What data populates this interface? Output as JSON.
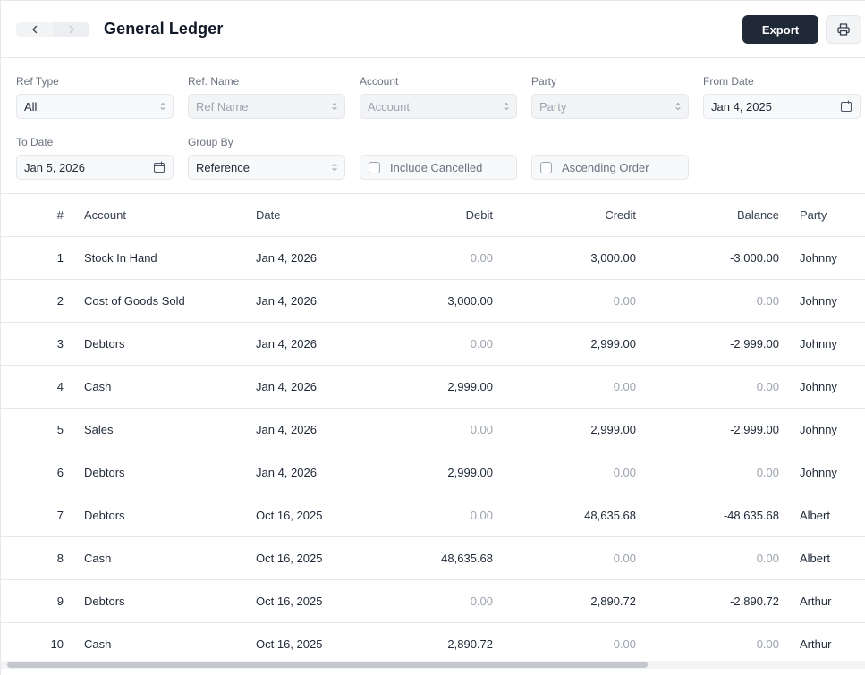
{
  "header": {
    "title": "General Ledger",
    "export_label": "Export",
    "back_icon": "chevron-left-icon",
    "forward_icon": "chevron-right-icon",
    "print_icon": "printer-icon"
  },
  "filters": {
    "ref_type": {
      "label": "Ref Type",
      "value": "All"
    },
    "ref_name": {
      "label": "Ref. Name",
      "placeholder": "Ref Name"
    },
    "account": {
      "label": "Account",
      "placeholder": "Account"
    },
    "party": {
      "label": "Party",
      "placeholder": "Party"
    },
    "from_date": {
      "label": "From Date",
      "value": "Jan 4, 2025"
    },
    "to_date": {
      "label": "To Date",
      "value": "Jan 5, 2026"
    },
    "group_by": {
      "label": "Group By",
      "value": "Reference"
    },
    "include_cancelled": {
      "label": "Include Cancelled",
      "checked": false
    },
    "ascending_order": {
      "label": "Ascending Order",
      "checked": false
    }
  },
  "table": {
    "columns": {
      "num": "#",
      "account": "Account",
      "date": "Date",
      "debit": "Debit",
      "credit": "Credit",
      "balance": "Balance",
      "party": "Party"
    },
    "rows": [
      {
        "num": "1",
        "account": "Stock In Hand",
        "date": "Jan 4, 2026",
        "debit": "0.00",
        "credit": "3,000.00",
        "balance": "-3,000.00",
        "party": "Johnny"
      },
      {
        "num": "2",
        "account": "Cost of Goods Sold",
        "date": "Jan 4, 2026",
        "debit": "3,000.00",
        "credit": "0.00",
        "balance": "0.00",
        "party": "Johnny"
      },
      {
        "num": "3",
        "account": "Debtors",
        "date": "Jan 4, 2026",
        "debit": "0.00",
        "credit": "2,999.00",
        "balance": "-2,999.00",
        "party": "Johnny"
      },
      {
        "num": "4",
        "account": "Cash",
        "date": "Jan 4, 2026",
        "debit": "2,999.00",
        "credit": "0.00",
        "balance": "0.00",
        "party": "Johnny"
      },
      {
        "num": "5",
        "account": "Sales",
        "date": "Jan 4, 2026",
        "debit": "0.00",
        "credit": "2,999.00",
        "balance": "-2,999.00",
        "party": "Johnny"
      },
      {
        "num": "6",
        "account": "Debtors",
        "date": "Jan 4, 2026",
        "debit": "2,999.00",
        "credit": "0.00",
        "balance": "0.00",
        "party": "Johnny"
      },
      {
        "num": "7",
        "account": "Debtors",
        "date": "Oct 16, 2025",
        "debit": "0.00",
        "credit": "48,635.68",
        "balance": "-48,635.68",
        "party": "Albert"
      },
      {
        "num": "8",
        "account": "Cash",
        "date": "Oct 16, 2025",
        "debit": "48,635.68",
        "credit": "0.00",
        "balance": "0.00",
        "party": "Albert"
      },
      {
        "num": "9",
        "account": "Debtors",
        "date": "Oct 16, 2025",
        "debit": "0.00",
        "credit": "2,890.72",
        "balance": "-2,890.72",
        "party": "Arthur"
      },
      {
        "num": "10",
        "account": "Cash",
        "date": "Oct 16, 2025",
        "debit": "2,890.72",
        "credit": "0.00",
        "balance": "0.00",
        "party": "Arthur"
      }
    ]
  }
}
